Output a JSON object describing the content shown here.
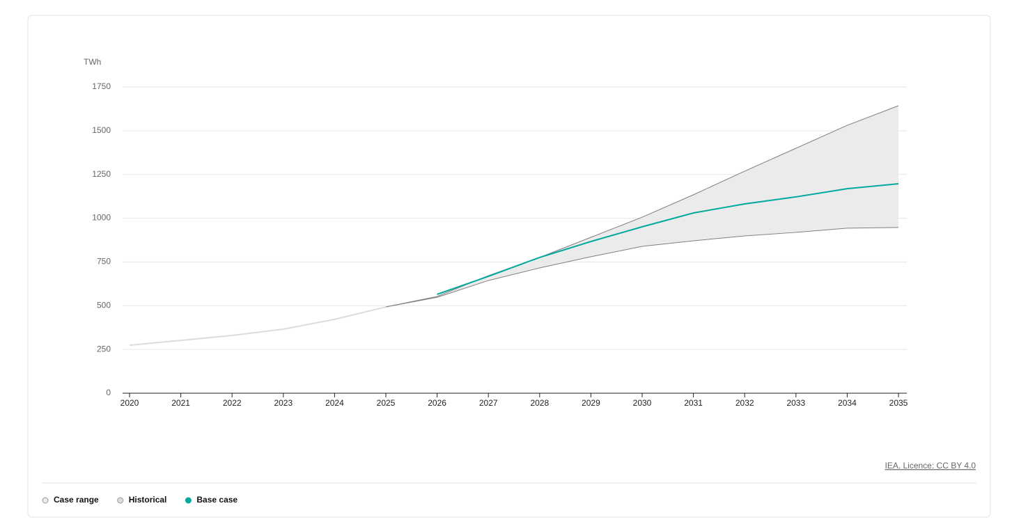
{
  "chart_data": {
    "type": "line",
    "y_label": "TWh",
    "x": [
      2020,
      2021,
      2022,
      2023,
      2024,
      2025,
      2026,
      2027,
      2028,
      2029,
      2030,
      2031,
      2032,
      2033,
      2034,
      2035
    ],
    "xlim": [
      2020,
      2035
    ],
    "xticks": [
      2020,
      2021,
      2022,
      2023,
      2024,
      2025,
      2026,
      2027,
      2028,
      2029,
      2030,
      2031,
      2032,
      2033,
      2034,
      2035
    ],
    "ylim": [
      0,
      1750
    ],
    "yticks": [
      0,
      250,
      500,
      750,
      1000,
      1250,
      1500,
      1750
    ],
    "grid": true,
    "series": [
      {
        "name": "Case range",
        "color": "#ebebeb",
        "line_color": "#7f7f7f",
        "low": [
          null,
          null,
          null,
          null,
          null,
          493,
          548,
          644,
          716,
          780,
          839,
          871,
          899,
          919,
          943,
          947
        ],
        "high": [
          null,
          null,
          null,
          null,
          null,
          493,
          553,
          672,
          776,
          891,
          1006,
          1134,
          1269,
          1400,
          1531,
          1643
        ]
      },
      {
        "name": "Historical",
        "color": "#dcdcdc",
        "values": [
          274,
          302,
          330,
          366,
          422,
          493,
          null,
          null,
          null,
          null,
          null,
          null,
          null,
          null,
          null,
          null
        ]
      },
      {
        "name": "Base case",
        "color": "#00a99d",
        "values": [
          null,
          null,
          null,
          null,
          null,
          null,
          565,
          668,
          776,
          867,
          951,
          1030,
          1082,
          1122,
          1169,
          1197
        ]
      }
    ],
    "source": "IEA. Licence: CC BY 4.0"
  }
}
